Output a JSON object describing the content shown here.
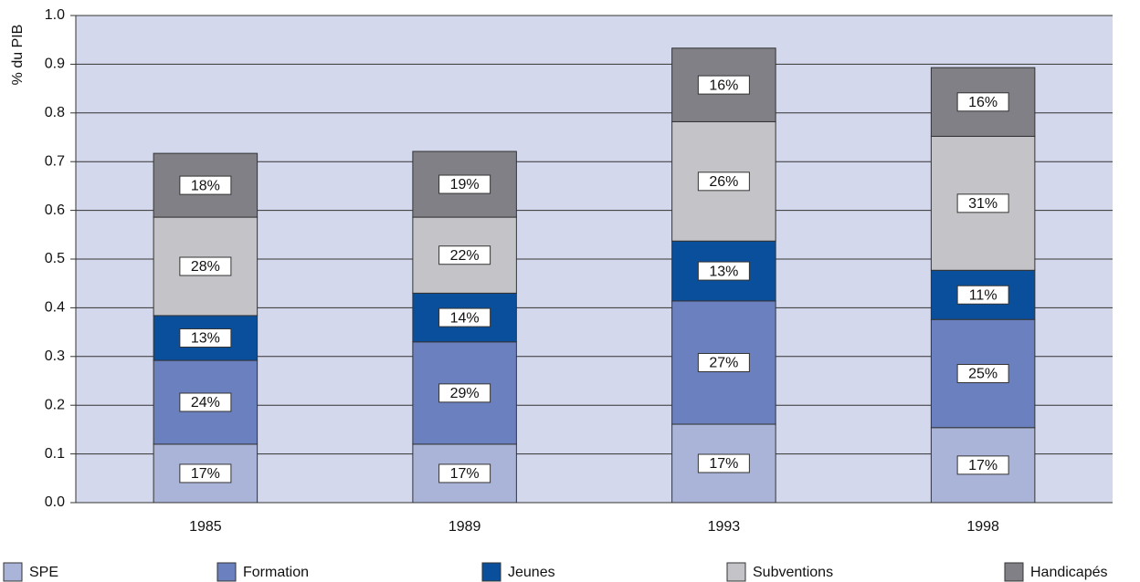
{
  "chart_data": {
    "type": "stacked-bar",
    "y_label": "% du PIB",
    "categories": [
      "1985",
      "1989",
      "1993",
      "1998"
    ],
    "series": [
      {
        "name": "SPE",
        "color": "#aab4d8",
        "values": [
          0.12,
          0.12,
          0.161,
          0.154
        ],
        "value_labels": [
          "17%",
          "17%",
          "17%",
          "17%"
        ]
      },
      {
        "name": "Formation",
        "color": "#6b80be",
        "values": [
          0.172,
          0.21,
          0.253,
          0.222
        ],
        "value_labels": [
          "24%",
          "29%",
          "27%",
          "25%"
        ]
      },
      {
        "name": "Jeunes",
        "color": "#0a4f9c",
        "values": [
          0.092,
          0.1,
          0.123,
          0.101
        ],
        "value_labels": [
          "13%",
          "14%",
          "13%",
          "11%"
        ]
      },
      {
        "name": "Subventions",
        "color": "#c4c4c8",
        "values": [
          0.202,
          0.156,
          0.245,
          0.275
        ],
        "value_labels": [
          "28%",
          "22%",
          "26%",
          "31%"
        ]
      },
      {
        "name": "Handicapés",
        "color": "#808086",
        "values": [
          0.131,
          0.135,
          0.151,
          0.141
        ],
        "value_labels": [
          "18%",
          "19%",
          "16%",
          "16%"
        ]
      }
    ],
    "ylim": [
      0,
      1
    ],
    "yticks": [
      {
        "value": 0,
        "label": "0.0"
      },
      0.1,
      0.2,
      0.3,
      0.4,
      0.5,
      0.6,
      0.7,
      0.8,
      0.9,
      {
        "value": 1,
        "label": "1.0"
      }
    ],
    "grid": true,
    "plot_background": "#d4d8ec"
  }
}
